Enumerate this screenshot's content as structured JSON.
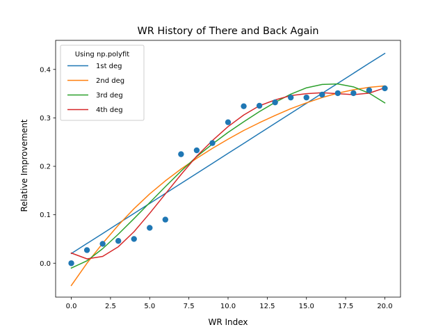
{
  "chart_data": {
    "type": "line",
    "title": "WR History of There and Back Again",
    "xlabel": "WR Index",
    "ylabel": "Relative Improvement",
    "xlim": [
      -1.0,
      21.0
    ],
    "ylim": [
      -0.07,
      0.46
    ],
    "x_ticks": [
      0.0,
      2.5,
      5.0,
      7.5,
      10.0,
      12.5,
      15.0,
      17.5,
      20.0
    ],
    "x_tick_labels": [
      "0.0",
      "2.5",
      "5.0",
      "7.5",
      "10.0",
      "12.5",
      "15.0",
      "17.5",
      "20.0"
    ],
    "y_ticks": [
      0.0,
      0.1,
      0.2,
      0.3,
      0.4
    ],
    "y_tick_labels": [
      "0.0",
      "0.1",
      "0.2",
      "0.3",
      "0.4"
    ],
    "grid": false,
    "legend": {
      "title": "Using np.polyfit",
      "placement": "top-left",
      "entries": [
        "1st deg",
        "2nd deg",
        "3rd deg",
        "4th deg"
      ]
    },
    "scatter": {
      "color": "#1f77b4",
      "x": [
        0,
        1,
        2,
        3,
        4,
        5,
        6,
        7,
        8,
        9,
        10,
        11,
        12,
        13,
        14,
        15,
        16,
        17,
        18,
        19,
        20
      ],
      "y": [
        0.0,
        0.027,
        0.04,
        0.046,
        0.05,
        0.073,
        0.09,
        0.225,
        0.233,
        0.248,
        0.291,
        0.324,
        0.325,
        0.332,
        0.342,
        0.342,
        0.348,
        0.351,
        0.351,
        0.357,
        0.361
      ]
    },
    "x": [
      0,
      1,
      2,
      3,
      4,
      5,
      6,
      7,
      8,
      9,
      10,
      11,
      12,
      13,
      14,
      15,
      16,
      17,
      18,
      19,
      20
    ],
    "series": [
      {
        "name": "1st deg",
        "color": "#1f77b4",
        "values": [
          0.02,
          0.0407,
          0.0613,
          0.082,
          0.1027,
          0.1233,
          0.144,
          0.1647,
          0.1853,
          0.206,
          0.2267,
          0.2473,
          0.268,
          0.2887,
          0.3093,
          0.33,
          0.3507,
          0.3713,
          0.392,
          0.4127,
          0.433
        ]
      },
      {
        "name": "2nd deg",
        "color": "#ff7f0e",
        "values": [
          -0.046,
          0.0,
          0.041,
          0.0785,
          0.1125,
          0.143,
          0.17,
          0.1945,
          0.2165,
          0.237,
          0.256,
          0.274,
          0.29,
          0.305,
          0.319,
          0.331,
          0.342,
          0.351,
          0.358,
          0.363,
          0.366
        ]
      },
      {
        "name": "3rd deg",
        "color": "#2ca02c",
        "values": [
          -0.01,
          0.005,
          0.03,
          0.06,
          0.092,
          0.125,
          0.158,
          0.19,
          0.22,
          0.246,
          0.27,
          0.292,
          0.313,
          0.332,
          0.349,
          0.362,
          0.369,
          0.37,
          0.364,
          0.351,
          0.331
        ]
      },
      {
        "name": "4th deg",
        "color": "#d62728",
        "values": [
          0.021,
          0.009,
          0.014,
          0.034,
          0.065,
          0.103,
          0.143,
          0.183,
          0.221,
          0.253,
          0.282,
          0.306,
          0.325,
          0.337,
          0.346,
          0.35,
          0.352,
          0.35,
          0.348,
          0.351,
          0.362
        ]
      }
    ]
  }
}
